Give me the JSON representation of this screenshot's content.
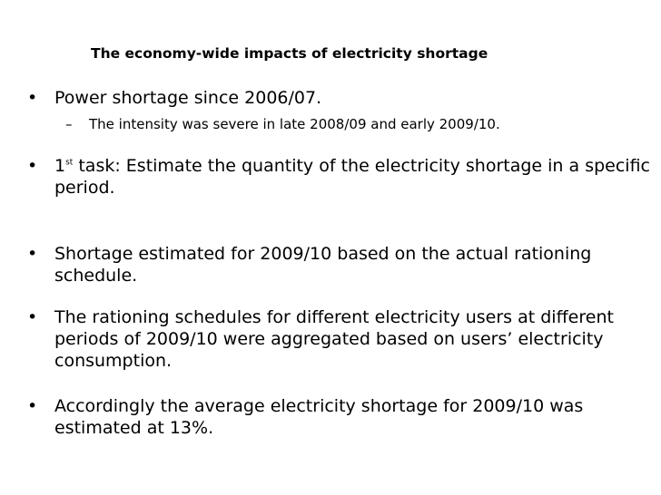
{
  "slide": {
    "title": "The economy-wide impacts of electricity shortage",
    "bullets": [
      {
        "text": "Power shortage since 2006/07."
      },
      {
        "prefix": "1",
        "sup": "st",
        "text": " task:  Estimate the quantity of the electricity shortage in a specific period."
      },
      {
        "text": "Shortage estimated for 2009/10 based on the actual rationing schedule."
      },
      {
        "text": "The rationing schedules for different electricity users at different periods of 2009/10 were aggregated based on users’ electricity consumption."
      },
      {
        "text": "Accordingly the average electricity shortage for 2009/10 was estimated at 13%."
      }
    ],
    "sub_bullets": [
      {
        "text": "The intensity was severe in late 2008/09 and early 2009/10."
      }
    ],
    "bullet_glyph": "•",
    "sub_glyph": "–"
  }
}
